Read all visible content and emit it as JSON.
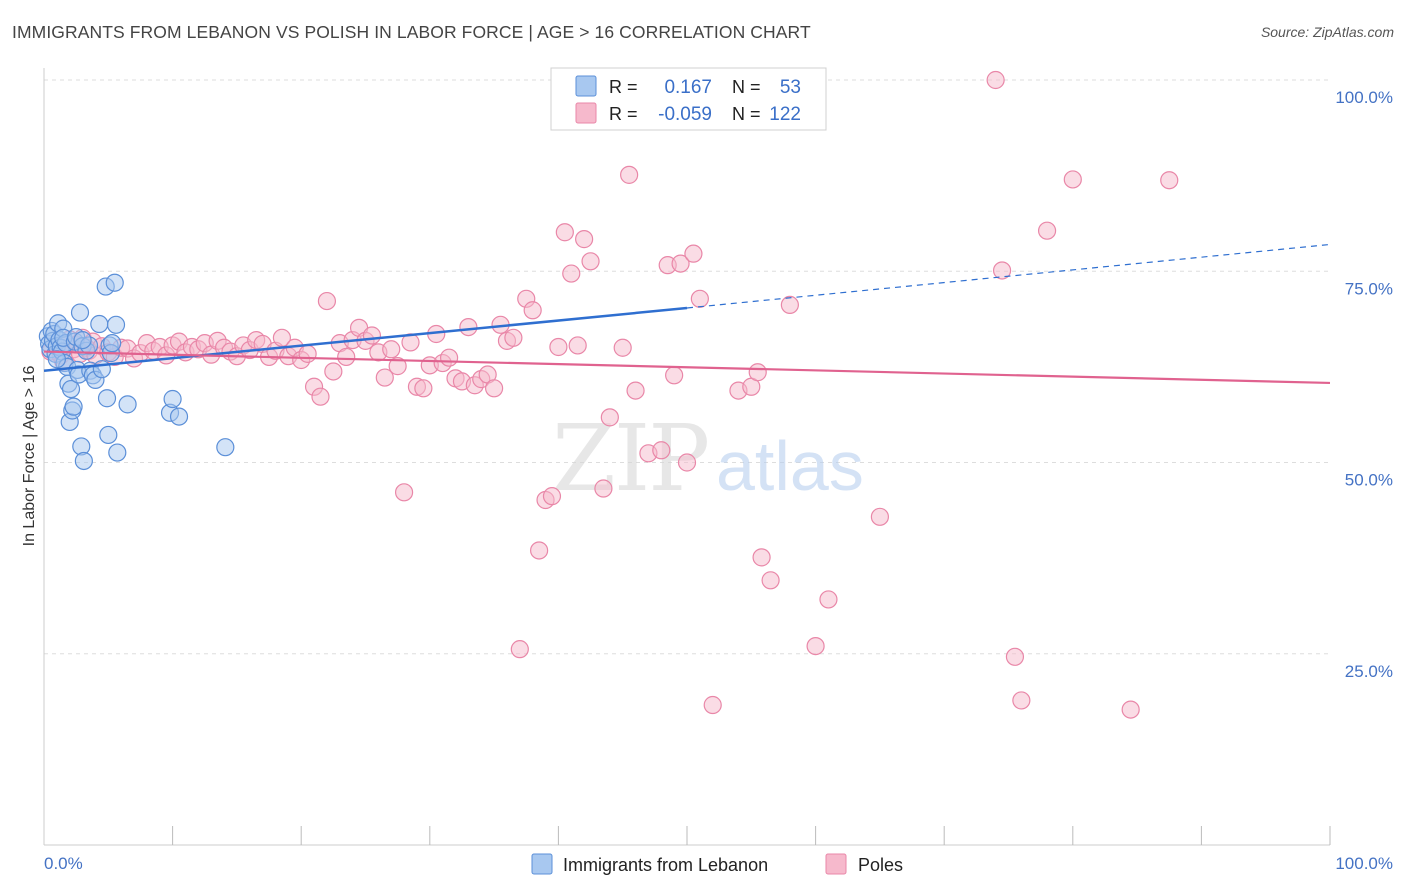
{
  "title": "IMMIGRANTS FROM LEBANON VS POLISH IN LABOR FORCE | AGE > 16 CORRELATION CHART",
  "source": "Source: ZipAtlas.com",
  "watermark": {
    "part1": "ZIP",
    "part2": "atlas"
  },
  "colors": {
    "blue_fill": "#a8c8f0",
    "blue_stroke": "#5b8fd8",
    "blue_line": "#2f6fd0",
    "pink_fill": "#f6b9cc",
    "pink_stroke": "#e987a8",
    "pink_line": "#e0628f",
    "axis_label": "#4472c4",
    "grid": "#dddddd"
  },
  "legend": {
    "rows": [
      {
        "r_label": "R =",
        "r_value": "0.167",
        "n_label": "N =",
        "n_value": "53"
      },
      {
        "r_label": "R =",
        "r_value": "-0.059",
        "n_label": "N =",
        "n_value": "122"
      }
    ]
  },
  "bottom_legend": [
    "Immigrants from Lebanon",
    "Poles"
  ],
  "chart_data": {
    "type": "scatter",
    "title": "IMMIGRANTS FROM LEBANON VS POLISH IN LABOR FORCE | AGE > 16 CORRELATION CHART",
    "xlabel": "",
    "ylabel": "In Labor Force | Age > 16",
    "xlim": [
      0,
      100
    ],
    "ylim": [
      0,
      100
    ],
    "x_tick_labels": [
      "0.0%",
      "100.0%"
    ],
    "y_ticks": [
      25,
      50,
      75,
      100
    ],
    "y_tick_labels": [
      "25.0%",
      "50.0%",
      "75.0%",
      "100.0%"
    ],
    "grid": true,
    "legend_position": "top-center",
    "series": [
      {
        "name": "Immigrants from Lebanon",
        "color": "#a8c8f0",
        "trend": {
          "x": [
            0,
            50
          ],
          "y": [
            62.0,
            70.2
          ],
          "dashed_to": [
            100,
            78.5
          ]
        },
        "points": [
          [
            0.3,
            66.5
          ],
          [
            0.4,
            65.5
          ],
          [
            0.5,
            64.8
          ],
          [
            0.6,
            67.2
          ],
          [
            0.7,
            65.9
          ],
          [
            0.8,
            66.8
          ],
          [
            0.9,
            64.2
          ],
          [
            1.0,
            65.2
          ],
          [
            1.1,
            68.2
          ],
          [
            1.2,
            66.0
          ],
          [
            1.3,
            65.0
          ],
          [
            1.4,
            64.5
          ],
          [
            1.5,
            67.5
          ],
          [
            1.6,
            63.0
          ],
          [
            1.7,
            65.6
          ],
          [
            1.8,
            62.5
          ],
          [
            1.9,
            60.3
          ],
          [
            1.5,
            66.3
          ],
          [
            1.0,
            63.5
          ],
          [
            2.0,
            55.3
          ],
          [
            2.1,
            59.6
          ],
          [
            2.2,
            56.8
          ],
          [
            2.3,
            57.3
          ],
          [
            2.4,
            65.8
          ],
          [
            2.5,
            66.4
          ],
          [
            2.6,
            62.1
          ],
          [
            2.7,
            61.5
          ],
          [
            2.8,
            69.6
          ],
          [
            2.9,
            52.1
          ],
          [
            3.0,
            65.2
          ],
          [
            3.1,
            50.2
          ],
          [
            3.3,
            64.6
          ],
          [
            3.5,
            65.3
          ],
          [
            3.0,
            66.0
          ],
          [
            3.6,
            62.0
          ],
          [
            3.8,
            61.4
          ],
          [
            4.0,
            60.8
          ],
          [
            4.3,
            68.1
          ],
          [
            4.5,
            62.2
          ],
          [
            4.8,
            73.0
          ],
          [
            4.9,
            58.4
          ],
          [
            5.0,
            53.6
          ],
          [
            5.1,
            65.3
          ],
          [
            5.5,
            73.5
          ],
          [
            5.2,
            64.3
          ],
          [
            5.3,
            65.6
          ],
          [
            5.6,
            68.0
          ],
          [
            5.7,
            51.3
          ],
          [
            6.5,
            57.6
          ],
          [
            9.8,
            56.5
          ],
          [
            10.0,
            58.3
          ],
          [
            10.5,
            56.0
          ],
          [
            14.1,
            52.0
          ]
        ]
      },
      {
        "name": "Poles",
        "color": "#f6b9cc",
        "trend": {
          "x": [
            0,
            100
          ],
          "y": [
            64.5,
            60.4
          ]
        },
        "points": [
          [
            0.5,
            64.5
          ],
          [
            1.0,
            65.2
          ],
          [
            1.3,
            64.0
          ],
          [
            1.5,
            63.2
          ],
          [
            1.8,
            65.5
          ],
          [
            2.0,
            66.1
          ],
          [
            2.3,
            64.8
          ],
          [
            2.5,
            65.4
          ],
          [
            2.8,
            64.2
          ],
          [
            3.0,
            66.3
          ],
          [
            3.3,
            65.0
          ],
          [
            3.5,
            64.6
          ],
          [
            3.8,
            65.8
          ],
          [
            4.0,
            64.0
          ],
          [
            4.5,
            65.2
          ],
          [
            5.0,
            64.4
          ],
          [
            5.5,
            63.8
          ],
          [
            6.0,
            65.0
          ],
          [
            6.5,
            64.9
          ],
          [
            7.0,
            63.6
          ],
          [
            7.5,
            64.3
          ],
          [
            8.0,
            65.6
          ],
          [
            8.5,
            64.6
          ],
          [
            9.0,
            65.1
          ],
          [
            9.5,
            64.0
          ],
          [
            10.0,
            65.3
          ],
          [
            10.5,
            65.8
          ],
          [
            11.0,
            64.4
          ],
          [
            11.5,
            65.1
          ],
          [
            12.0,
            64.8
          ],
          [
            12.5,
            65.6
          ],
          [
            13.0,
            64.1
          ],
          [
            13.5,
            65.9
          ],
          [
            14.0,
            65.0
          ],
          [
            14.5,
            64.5
          ],
          [
            15.0,
            63.9
          ],
          [
            15.5,
            65.3
          ],
          [
            16.0,
            64.7
          ],
          [
            16.5,
            66.0
          ],
          [
            17.0,
            65.5
          ],
          [
            17.5,
            63.8
          ],
          [
            18.0,
            64.6
          ],
          [
            18.5,
            66.3
          ],
          [
            19.0,
            63.9
          ],
          [
            19.5,
            65.0
          ],
          [
            20.0,
            63.4
          ],
          [
            20.5,
            64.2
          ],
          [
            21.0,
            59.9
          ],
          [
            21.5,
            58.6
          ],
          [
            22.0,
            71.1
          ],
          [
            22.5,
            61.9
          ],
          [
            23.0,
            65.6
          ],
          [
            23.5,
            63.8
          ],
          [
            24.0,
            66.0
          ],
          [
            24.5,
            67.6
          ],
          [
            25.0,
            65.9
          ],
          [
            25.5,
            66.6
          ],
          [
            26.0,
            64.4
          ],
          [
            26.5,
            61.1
          ],
          [
            27.0,
            64.8
          ],
          [
            27.5,
            62.6
          ],
          [
            28.0,
            46.1
          ],
          [
            28.5,
            65.7
          ],
          [
            29.0,
            59.9
          ],
          [
            29.5,
            59.7
          ],
          [
            30.0,
            62.7
          ],
          [
            30.5,
            66.8
          ],
          [
            31.0,
            63.0
          ],
          [
            31.5,
            63.7
          ],
          [
            32.0,
            61.0
          ],
          [
            32.5,
            60.6
          ],
          [
            33.0,
            67.7
          ],
          [
            33.5,
            60.1
          ],
          [
            34.0,
            60.9
          ],
          [
            34.5,
            61.5
          ],
          [
            35.0,
            59.7
          ],
          [
            35.5,
            68.0
          ],
          [
            36.0,
            65.9
          ],
          [
            36.5,
            66.3
          ],
          [
            37.0,
            25.6
          ],
          [
            37.5,
            71.4
          ],
          [
            38.0,
            69.9
          ],
          [
            38.5,
            38.5
          ],
          [
            39.0,
            45.1
          ],
          [
            39.5,
            45.6
          ],
          [
            40.0,
            65.1
          ],
          [
            40.5,
            80.1
          ],
          [
            41.0,
            74.7
          ],
          [
            41.5,
            65.3
          ],
          [
            42.0,
            79.2
          ],
          [
            42.5,
            76.3
          ],
          [
            43.5,
            46.6
          ],
          [
            44.0,
            55.9
          ],
          [
            45.0,
            65.0
          ],
          [
            45.5,
            87.6
          ],
          [
            46.0,
            59.4
          ],
          [
            47.0,
            51.2
          ],
          [
            48.0,
            51.6
          ],
          [
            48.5,
            75.8
          ],
          [
            49.0,
            61.4
          ],
          [
            49.5,
            76.0
          ],
          [
            50.0,
            50.0
          ],
          [
            50.5,
            77.3
          ],
          [
            51.0,
            71.4
          ],
          [
            52.0,
            18.3
          ],
          [
            54.0,
            59.4
          ],
          [
            55.0,
            59.9
          ],
          [
            55.5,
            61.8
          ],
          [
            55.8,
            37.6
          ],
          [
            56.5,
            34.6
          ],
          [
            58.0,
            70.6
          ],
          [
            60.0,
            26.0
          ],
          [
            61.0,
            32.1
          ],
          [
            65.0,
            42.9
          ],
          [
            74.0,
            100.0
          ],
          [
            74.5,
            75.1
          ],
          [
            75.5,
            24.6
          ],
          [
            76.0,
            18.9
          ],
          [
            78.0,
            80.3
          ],
          [
            80.0,
            87.0
          ],
          [
            84.5,
            17.7
          ],
          [
            87.5,
            86.9
          ]
        ]
      }
    ]
  }
}
